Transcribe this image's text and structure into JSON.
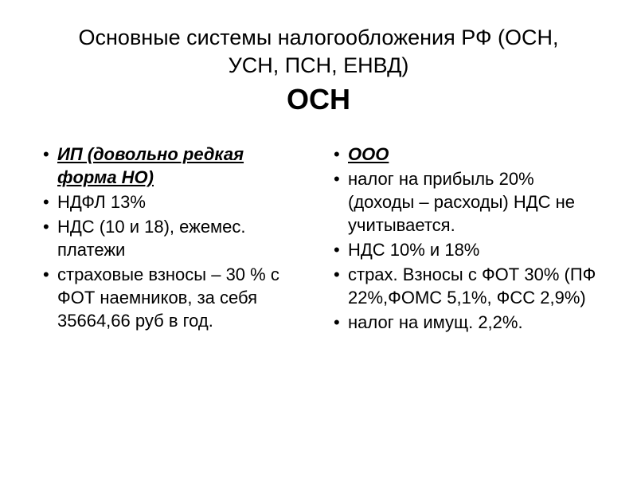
{
  "title": {
    "line1": "Основные системы налогообложения РФ (ОСН,",
    "line2": "УСН, ПСН, ЕНВД)",
    "main": "ОСН"
  },
  "left": {
    "heading": "ИП (довольно редкая форма НО)",
    "items": [
      "НДФЛ 13%",
      "НДС (10 и 18), ежемес. платежи",
      " страховые взносы – 30 % с ФОТ наемников, за себя 35664,66 руб в год."
    ]
  },
  "right": {
    "heading": "ООО",
    "items": [
      "налог на прибыль 20% (доходы – расходы) НДС не учитывается.",
      " НДС 10% и 18%",
      "страх. Взносы с ФОТ 30% (ПФ 22%,ФОМС 5,1%, ФСС 2,9%)",
      "налог на имущ. 2,2%."
    ]
  }
}
